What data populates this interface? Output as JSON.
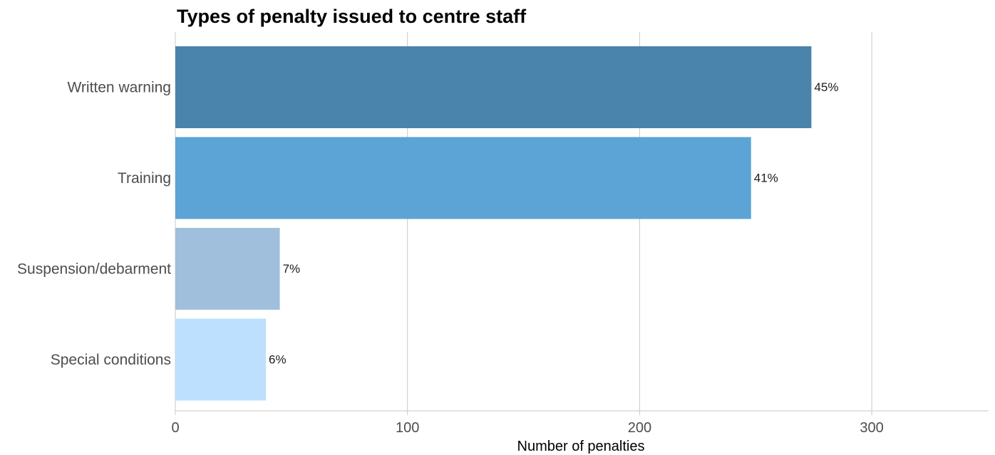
{
  "chart_data": {
    "type": "bar",
    "orientation": "horizontal",
    "title": "Types of penalty issued to centre staff",
    "xlabel": "Number of penalties",
    "ylabel": "",
    "categories": [
      "Written warning",
      "Training",
      "Suspension/debarment",
      "Special conditions"
    ],
    "values": [
      274,
      248,
      45,
      39
    ],
    "data_labels": [
      "45%",
      "41%",
      "7%",
      "6%"
    ],
    "colors": [
      "#4a83ab",
      "#5ca3d6",
      "#a0bfdc",
      "#bde0fe"
    ],
    "xlim": [
      0,
      350
    ],
    "xticks": [
      0,
      100,
      200,
      300
    ],
    "xtick_labels": [
      "0",
      "100",
      "200",
      "300"
    ],
    "grid": "vertical",
    "legend": "none"
  }
}
